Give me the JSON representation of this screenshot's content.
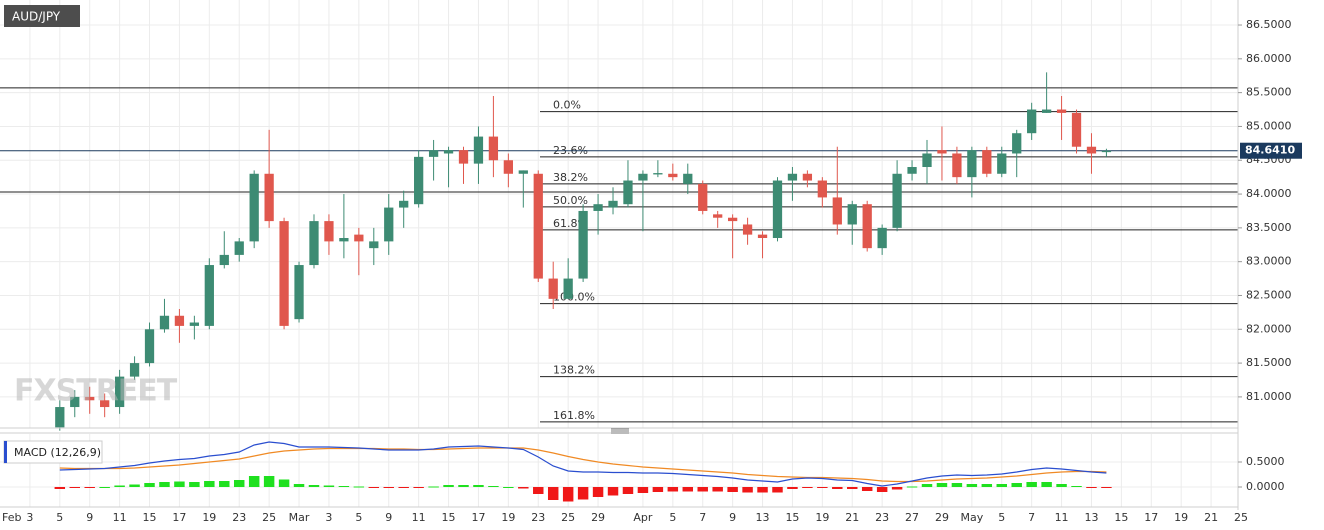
{
  "chart_data": {
    "type": "candlestick",
    "symbol": "AUD/JPY",
    "logo": "FXSTREET",
    "up_color": "#3d8b73",
    "down_color": "#e0574d",
    "grid": true,
    "ylim": [
      80.54,
      86.87
    ],
    "yticks": [
      {
        "value": 81,
        "label": "81.0000"
      },
      {
        "value": 81.5,
        "label": "81.5000"
      },
      {
        "value": 82,
        "label": "82.0000"
      },
      {
        "value": 82.5,
        "label": "82.5000"
      },
      {
        "value": 83,
        "label": "83.0000"
      },
      {
        "value": 83.5,
        "label": "83.5000"
      },
      {
        "value": 84,
        "label": "84.0000"
      },
      {
        "value": 84.5,
        "label": "84.5000"
      },
      {
        "value": 85,
        "label": "85.0000"
      },
      {
        "value": 85.5,
        "label": "85.5000"
      },
      {
        "value": 86,
        "label": "86.0000"
      },
      {
        "value": 86.5,
        "label": "86.5000"
      }
    ],
    "xlim": [
      -4,
      78.8
    ],
    "xticks": [
      {
        "value": -4,
        "label": "Feb"
      },
      {
        "value": -2,
        "label": "3"
      },
      {
        "value": 0,
        "label": "5"
      },
      {
        "value": 2,
        "label": "9"
      },
      {
        "value": 4,
        "label": "11"
      },
      {
        "value": 6,
        "label": "15"
      },
      {
        "value": 8,
        "label": "17"
      },
      {
        "value": 10,
        "label": "19"
      },
      {
        "value": 12,
        "label": "23"
      },
      {
        "value": 14,
        "label": "25"
      },
      {
        "value": 16,
        "label": "Mar"
      },
      {
        "value": 18,
        "label": "3"
      },
      {
        "value": 20,
        "label": "5"
      },
      {
        "value": 22,
        "label": "9"
      },
      {
        "value": 24,
        "label": "11"
      },
      {
        "value": 26,
        "label": "15"
      },
      {
        "value": 28,
        "label": "17"
      },
      {
        "value": 30,
        "label": "19"
      },
      {
        "value": 32,
        "label": "23"
      },
      {
        "value": 34,
        "label": "25"
      },
      {
        "value": 36,
        "label": "29"
      },
      {
        "value": 39,
        "label": "Apr"
      },
      {
        "value": 41,
        "label": "5"
      },
      {
        "value": 43,
        "label": "7"
      },
      {
        "value": 45,
        "label": "9"
      },
      {
        "value": 47,
        "label": "13"
      },
      {
        "value": 49,
        "label": "15"
      },
      {
        "value": 51,
        "label": "19"
      },
      {
        "value": 53,
        "label": "21"
      },
      {
        "value": 55,
        "label": "23"
      },
      {
        "value": 57,
        "label": "27"
      },
      {
        "value": 59,
        "label": "29"
      },
      {
        "value": 61,
        "label": "May"
      },
      {
        "value": 63,
        "label": "5"
      },
      {
        "value": 65,
        "label": "7"
      },
      {
        "value": 67,
        "label": "11"
      },
      {
        "value": 69,
        "label": "13"
      },
      {
        "value": 71,
        "label": "15"
      },
      {
        "value": 73,
        "label": "17"
      },
      {
        "value": 75,
        "label": "19"
      },
      {
        "value": 77,
        "label": "21"
      },
      {
        "value": 79,
        "label": "25"
      }
    ],
    "open": [
      80.55,
      80.85,
      81.0,
      80.95,
      80.85,
      81.3,
      81.5,
      82.0,
      82.2,
      82.05,
      82.05,
      82.95,
      83.1,
      83.3,
      84.3,
      83.6,
      82.15,
      82.95,
      83.6,
      83.3,
      83.4,
      83.2,
      83.3,
      83.8,
      83.85,
      84.55,
      84.6,
      84.65,
      84.45,
      84.85,
      84.5,
      84.3,
      84.3,
      82.75,
      82.45,
      82.75,
      83.75,
      83.8,
      83.85,
      84.2,
      84.29,
      84.3,
      84.15,
      84.15,
      83.7,
      83.65,
      83.55,
      83.4,
      83.35,
      84.2,
      84.3,
      84.2,
      83.95,
      83.55,
      83.85,
      83.2,
      83.5,
      84.3,
      84.4,
      84.65,
      84.6,
      84.25,
      84.65,
      84.3,
      84.6,
      84.9,
      85.2,
      85.25,
      85.2,
      84.7,
      84.62
    ],
    "high": [
      80.95,
      81.1,
      81.15,
      81.05,
      81.4,
      81.6,
      82.1,
      82.45,
      82.3,
      82.2,
      83.05,
      83.45,
      83.35,
      84.35,
      84.95,
      83.65,
      83.0,
      83.7,
      83.7,
      84.0,
      83.5,
      83.5,
      84.0,
      84.05,
      84.65,
      84.8,
      84.7,
      84.7,
      85.0,
      85.45,
      84.6,
      84.35,
      84.35,
      83.0,
      83.05,
      83.85,
      84.0,
      84.1,
      84.5,
      84.35,
      84.5,
      84.45,
      84.45,
      84.2,
      83.75,
      83.7,
      83.65,
      83.45,
      84.25,
      84.4,
      84.35,
      84.25,
      84.7,
      83.9,
      83.9,
      83.55,
      84.5,
      84.5,
      84.8,
      85.0,
      84.7,
      84.7,
      84.7,
      84.7,
      84.95,
      85.35,
      85.8,
      85.45,
      85.25,
      84.9,
      84.67
    ],
    "low": [
      80.5,
      80.7,
      80.75,
      80.7,
      80.75,
      81.25,
      81.45,
      81.95,
      81.8,
      81.85,
      82.0,
      82.9,
      83.0,
      83.2,
      83.5,
      82.0,
      82.1,
      82.9,
      83.1,
      83.05,
      82.8,
      82.95,
      83.1,
      83.5,
      83.8,
      84.2,
      84.1,
      84.15,
      84.15,
      84.25,
      84.1,
      83.8,
      82.7,
      82.3,
      82.45,
      82.7,
      83.4,
      83.7,
      83.8,
      83.45,
      84.25,
      84.2,
      84.0,
      83.7,
      83.5,
      83.05,
      83.25,
      83.05,
      83.3,
      83.9,
      84.1,
      83.8,
      83.4,
      83.25,
      83.15,
      83.1,
      83.45,
      84.2,
      84.15,
      84.2,
      84.15,
      83.95,
      84.25,
      84.25,
      84.25,
      84.8,
      85.2,
      84.8,
      84.6,
      84.3,
      84.55
    ],
    "close": [
      80.85,
      81.0,
      80.95,
      80.85,
      81.3,
      81.5,
      82.0,
      82.2,
      82.05,
      82.1,
      82.95,
      83.1,
      83.3,
      84.3,
      83.6,
      82.05,
      82.95,
      83.6,
      83.3,
      83.35,
      83.3,
      83.3,
      83.8,
      83.9,
      84.55,
      84.65,
      84.65,
      84.45,
      84.85,
      84.5,
      84.3,
      84.35,
      82.75,
      82.45,
      82.75,
      83.75,
      83.85,
      83.9,
      84.2,
      84.3,
      84.31,
      84.25,
      84.3,
      83.75,
      83.65,
      83.6,
      83.4,
      83.35,
      84.2,
      84.3,
      84.2,
      83.95,
      83.55,
      83.85,
      83.2,
      83.5,
      84.3,
      84.4,
      84.6,
      84.6,
      84.25,
      84.65,
      84.3,
      84.6,
      84.9,
      85.25,
      85.25,
      85.2,
      84.7,
      84.6,
      84.64
    ],
    "levels": [
      85.57,
      84.03
    ],
    "fibonacci": [
      {
        "value": 85.22,
        "label": "0.0%"
      },
      {
        "value": 84.55,
        "label": "23.6%"
      },
      {
        "value": 84.15,
        "label": "38.2%"
      },
      {
        "value": 83.81,
        "label": "50.0%"
      },
      {
        "value": 83.47,
        "label": "61.8%"
      },
      {
        "value": 82.38,
        "label": "100.0%"
      },
      {
        "value": 81.3,
        "label": "138.2%"
      },
      {
        "value": 80.63,
        "label": "161.8%"
      }
    ],
    "last_price": {
      "value": 84.641,
      "label": "84.6410"
    },
    "macd": {
      "title": "MACD (12,26,9)",
      "macd_color": "#2a4ecf",
      "signal_color": "#f08a24",
      "up_color": "#1fe01f",
      "down_color": "#f01818",
      "ylim": [
        -0.36,
        1.0
      ],
      "yticks": [
        {
          "value": 0.5,
          "label": "0.5000"
        },
        {
          "value": 0,
          "label": "0.0000"
        }
      ],
      "macd": [
        0.34,
        0.35,
        0.36,
        0.37,
        0.4,
        0.43,
        0.48,
        0.52,
        0.55,
        0.57,
        0.62,
        0.65,
        0.7,
        0.84,
        0.9,
        0.87,
        0.8,
        0.8,
        0.8,
        0.79,
        0.78,
        0.76,
        0.74,
        0.74,
        0.74,
        0.76,
        0.8,
        0.81,
        0.82,
        0.8,
        0.78,
        0.75,
        0.6,
        0.42,
        0.32,
        0.3,
        0.3,
        0.29,
        0.29,
        0.28,
        0.28,
        0.27,
        0.25,
        0.23,
        0.21,
        0.18,
        0.14,
        0.12,
        0.1,
        0.16,
        0.18,
        0.17,
        0.14,
        0.13,
        0.07,
        0.02,
        0.06,
        0.12,
        0.18,
        0.22,
        0.24,
        0.23,
        0.24,
        0.26,
        0.3,
        0.35,
        0.38,
        0.36,
        0.33,
        0.3,
        0.28
      ],
      "signal": [
        0.38,
        0.37,
        0.37,
        0.37,
        0.37,
        0.38,
        0.4,
        0.42,
        0.44,
        0.47,
        0.5,
        0.53,
        0.56,
        0.62,
        0.68,
        0.72,
        0.74,
        0.76,
        0.77,
        0.77,
        0.77,
        0.77,
        0.76,
        0.76,
        0.75,
        0.75,
        0.76,
        0.77,
        0.78,
        0.78,
        0.78,
        0.78,
        0.74,
        0.68,
        0.61,
        0.55,
        0.5,
        0.46,
        0.43,
        0.4,
        0.38,
        0.36,
        0.34,
        0.32,
        0.3,
        0.28,
        0.25,
        0.23,
        0.21,
        0.2,
        0.19,
        0.19,
        0.18,
        0.17,
        0.15,
        0.12,
        0.11,
        0.11,
        0.12,
        0.14,
        0.16,
        0.17,
        0.18,
        0.2,
        0.22,
        0.25,
        0.28,
        0.3,
        0.31,
        0.31,
        0.3
      ],
      "histogram": [
        -0.04,
        -0.02,
        -0.01,
        0.0,
        0.03,
        0.05,
        0.08,
        0.1,
        0.11,
        0.1,
        0.12,
        0.12,
        0.14,
        0.22,
        0.22,
        0.15,
        0.06,
        0.04,
        0.03,
        0.02,
        0.01,
        -0.01,
        -0.02,
        -0.02,
        -0.01,
        0.01,
        0.04,
        0.04,
        0.04,
        0.02,
        0.0,
        -0.03,
        -0.14,
        -0.26,
        -0.29,
        -0.25,
        -0.2,
        -0.17,
        -0.14,
        -0.12,
        -0.1,
        -0.09,
        -0.09,
        -0.09,
        -0.09,
        -0.1,
        -0.11,
        -0.11,
        -0.11,
        -0.04,
        -0.01,
        -0.02,
        -0.04,
        -0.04,
        -0.08,
        -0.1,
        -0.05,
        0.01,
        0.06,
        0.08,
        0.08,
        0.06,
        0.06,
        0.06,
        0.08,
        0.1,
        0.1,
        0.06,
        0.02,
        -0.01,
        -0.02
      ]
    }
  }
}
